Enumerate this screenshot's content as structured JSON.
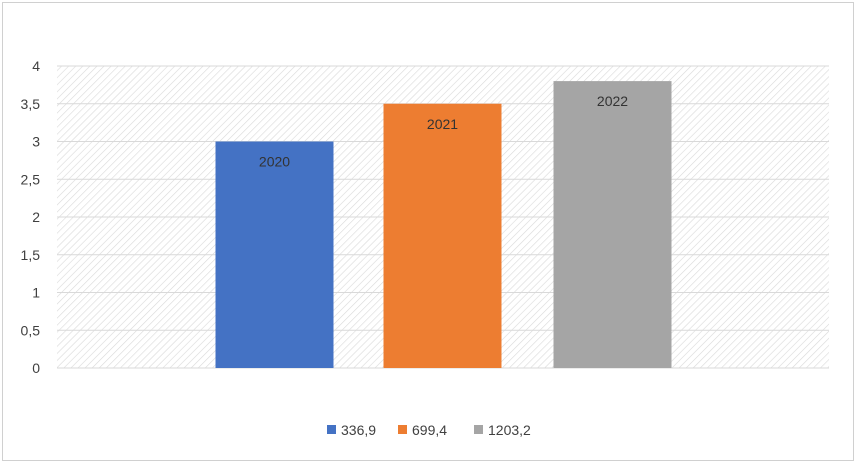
{
  "chart_data": {
    "type": "bar",
    "categories": [
      "336,9",
      "699,4",
      "1203,2"
    ],
    "values": [
      3,
      3.5,
      3.8
    ],
    "data_labels": [
      "2020",
      "2021",
      "2022"
    ],
    "colors": [
      "#4472C4",
      "#ED7D31",
      "#A5A5A5"
    ],
    "ylim": [
      0,
      4
    ],
    "yticks": [
      0,
      0.5,
      1,
      1.5,
      2,
      2.5,
      3,
      3.5,
      4
    ],
    "ytick_labels": [
      "0",
      "0,5",
      "1",
      "1,5",
      "2",
      "2,5",
      "3",
      "3,5",
      "4"
    ],
    "grid": true,
    "plot_background": "diagonal-hatch",
    "legend": {
      "position": "bottom",
      "entries": [
        "336,9",
        "699,4",
        "1203,2"
      ]
    },
    "title": "",
    "xlabel": "",
    "ylabel": ""
  }
}
